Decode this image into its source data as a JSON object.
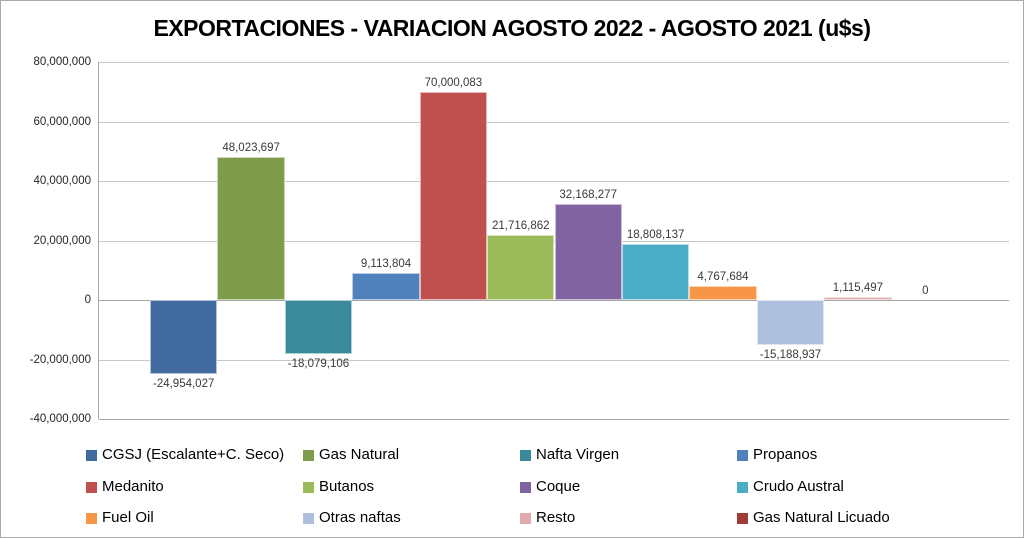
{
  "chart_data": {
    "type": "bar",
    "title": "EXPORTACIONES - VARIACION AGOSTO 2022 - AGOSTO 2021 (u$s)",
    "xlabel": "",
    "ylabel": "",
    "ylim": [
      -40000000,
      80000000
    ],
    "y_tick_step": 20000000,
    "grid": true,
    "legend_position": "bottom",
    "y_ticks": [
      {
        "value": 80000000,
        "label": "80,000,000"
      },
      {
        "value": 60000000,
        "label": "60,000,000"
      },
      {
        "value": 40000000,
        "label": "40,000,000"
      },
      {
        "value": 20000000,
        "label": "20,000,000"
      },
      {
        "value": 0,
        "label": "0"
      },
      {
        "value": -20000000,
        "label": "-20,000,000"
      },
      {
        "value": -40000000,
        "label": "-40,000,000"
      }
    ],
    "series": [
      {
        "name": "CGSJ (Escalante+C. Seco)",
        "value": -24954027,
        "label": "-24,954,027",
        "color": "#416a9e"
      },
      {
        "name": "Gas Natural",
        "value": 48023697,
        "label": "48,023,697",
        "color": "#7e9c49"
      },
      {
        "name": "Nafta Virgen",
        "value": -18079106,
        "label": "-18,079,106",
        "color": "#3b8a9b"
      },
      {
        "name": "Propanos",
        "value": 9113804,
        "label": "9,113,804",
        "color": "#4f81bd"
      },
      {
        "name": "Medanito",
        "value": 70000083,
        "label": "70,000,083",
        "color": "#c0504d"
      },
      {
        "name": "Butanos",
        "value": 21716862,
        "label": "21,716,862",
        "color": "#9bbb59"
      },
      {
        "name": "Coque",
        "value": 32168277,
        "label": "32,168,277",
        "color": "#8064a2"
      },
      {
        "name": "Crudo Austral",
        "value": 18808137,
        "label": "18,808,137",
        "color": "#4bacc6"
      },
      {
        "name": "Fuel Oil",
        "value": 4767684,
        "label": "4,767,684",
        "color": "#f79646"
      },
      {
        "name": "Otras naftas",
        "value": -15188937,
        "label": "-15,188,937",
        "color": "#aec0de"
      },
      {
        "name": "Resto",
        "value": 1115497,
        "label": "1,115,497",
        "color": "#dfabad"
      },
      {
        "name": "Gas Natural Licuado",
        "value": 0,
        "label": "0",
        "color": "#a13b38"
      }
    ]
  },
  "layout_colors": {
    "gridline": "#c8c8c8",
    "axis_line": "#a6a6a6",
    "frame_border": "#ababab",
    "background": "#ffffff"
  }
}
